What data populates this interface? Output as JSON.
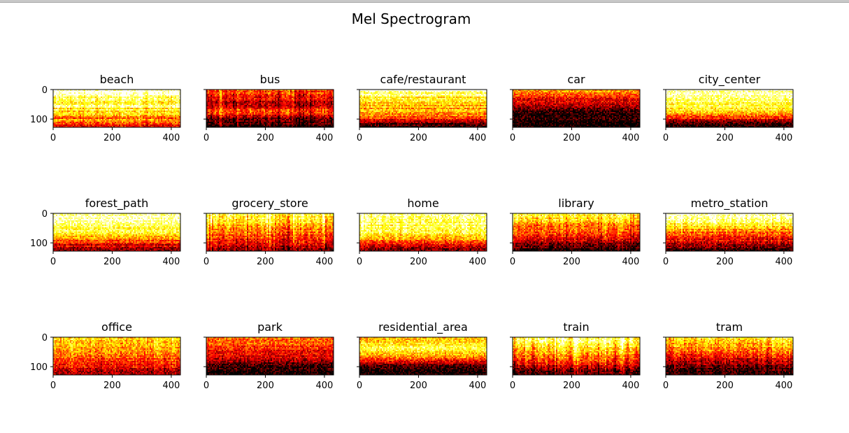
{
  "chart_data": {
    "type": "heatmap",
    "title": "Mel Spectrogram",
    "colormap": "hot",
    "x_ticks": [
      "0",
      "200",
      "400"
    ],
    "y_ticks": [
      "0",
      "100"
    ],
    "xlim": [
      0,
      431
    ],
    "ylim": [
      0,
      128
    ],
    "y_inverted": true,
    "panels": [
      {
        "label": "beach",
        "profile": [
          1.0,
          0.95,
          0.9,
          0.82,
          0.8,
          0.7,
          0.62,
          0.55,
          0.45,
          0.3
        ],
        "vstripe": 0.1,
        "hstripe": 0.1
      },
      {
        "label": "bus",
        "profile": [
          0.5,
          0.45,
          0.4,
          0.3,
          0.25,
          0.45,
          0.4,
          0.2,
          0.12,
          0.05
        ],
        "vstripe": 0.2,
        "hstripe": 0.05
      },
      {
        "label": "cafe/restaurant",
        "profile": [
          0.95,
          0.85,
          0.72,
          0.65,
          0.62,
          0.58,
          0.52,
          0.38,
          0.2,
          0.1
        ],
        "vstripe": 0.03,
        "hstripe": 0.1
      },
      {
        "label": "car",
        "profile": [
          0.6,
          0.52,
          0.4,
          0.3,
          0.18,
          0.08,
          0.04,
          0.03,
          0.03,
          0.02
        ],
        "vstripe": 0.03,
        "hstripe": 0.05
      },
      {
        "label": "city_center",
        "profile": [
          0.95,
          0.92,
          0.88,
          0.83,
          0.78,
          0.7,
          0.6,
          0.4,
          0.12,
          0.05
        ],
        "vstripe": 0.02,
        "hstripe": 0.05
      },
      {
        "label": "forest_path",
        "profile": [
          0.95,
          0.92,
          0.9,
          0.85,
          0.78,
          0.65,
          0.55,
          0.45,
          0.28,
          0.2
        ],
        "vstripe": 0.02,
        "hstripe": 0.08
      },
      {
        "label": "grocery_store",
        "profile": [
          0.8,
          0.75,
          0.7,
          0.62,
          0.55,
          0.5,
          0.45,
          0.35,
          0.28,
          0.2
        ],
        "vstripe": 0.25,
        "hstripe": 0.04
      },
      {
        "label": "home",
        "profile": [
          0.85,
          0.85,
          0.82,
          0.8,
          0.75,
          0.7,
          0.6,
          0.4,
          0.25,
          0.15
        ],
        "vstripe": 0.12,
        "hstripe": 0.05
      },
      {
        "label": "library",
        "profile": [
          0.8,
          0.72,
          0.65,
          0.55,
          0.48,
          0.42,
          0.35,
          0.22,
          0.12,
          0.05
        ],
        "vstripe": 0.15,
        "hstripe": 0.05
      },
      {
        "label": "metro_station",
        "profile": [
          0.95,
          0.9,
          0.85,
          0.72,
          0.6,
          0.48,
          0.4,
          0.3,
          0.18,
          0.08
        ],
        "vstripe": 0.12,
        "hstripe": 0.05
      },
      {
        "label": "office",
        "profile": [
          0.7,
          0.68,
          0.62,
          0.58,
          0.52,
          0.48,
          0.44,
          0.38,
          0.3,
          0.25
        ],
        "vstripe": 0.15,
        "hstripe": 0.04
      },
      {
        "label": "park",
        "profile": [
          0.55,
          0.48,
          0.45,
          0.4,
          0.35,
          0.3,
          0.18,
          0.08,
          0.05,
          0.03
        ],
        "vstripe": 0.06,
        "hstripe": 0.04
      },
      {
        "label": "residential_area",
        "profile": [
          0.62,
          0.68,
          0.8,
          0.8,
          0.65,
          0.5,
          0.3,
          0.1,
          0.04,
          0.02
        ],
        "vstripe": 0.05,
        "hstripe": 0.04
      },
      {
        "label": "train",
        "profile": [
          0.82,
          0.8,
          0.75,
          0.65,
          0.55,
          0.48,
          0.4,
          0.28,
          0.15,
          0.08
        ],
        "vstripe": 0.25,
        "hstripe": 0.04
      },
      {
        "label": "tram",
        "profile": [
          0.75,
          0.7,
          0.62,
          0.55,
          0.45,
          0.35,
          0.25,
          0.15,
          0.08,
          0.04
        ],
        "vstripe": 0.15,
        "hstripe": 0.04
      }
    ]
  }
}
